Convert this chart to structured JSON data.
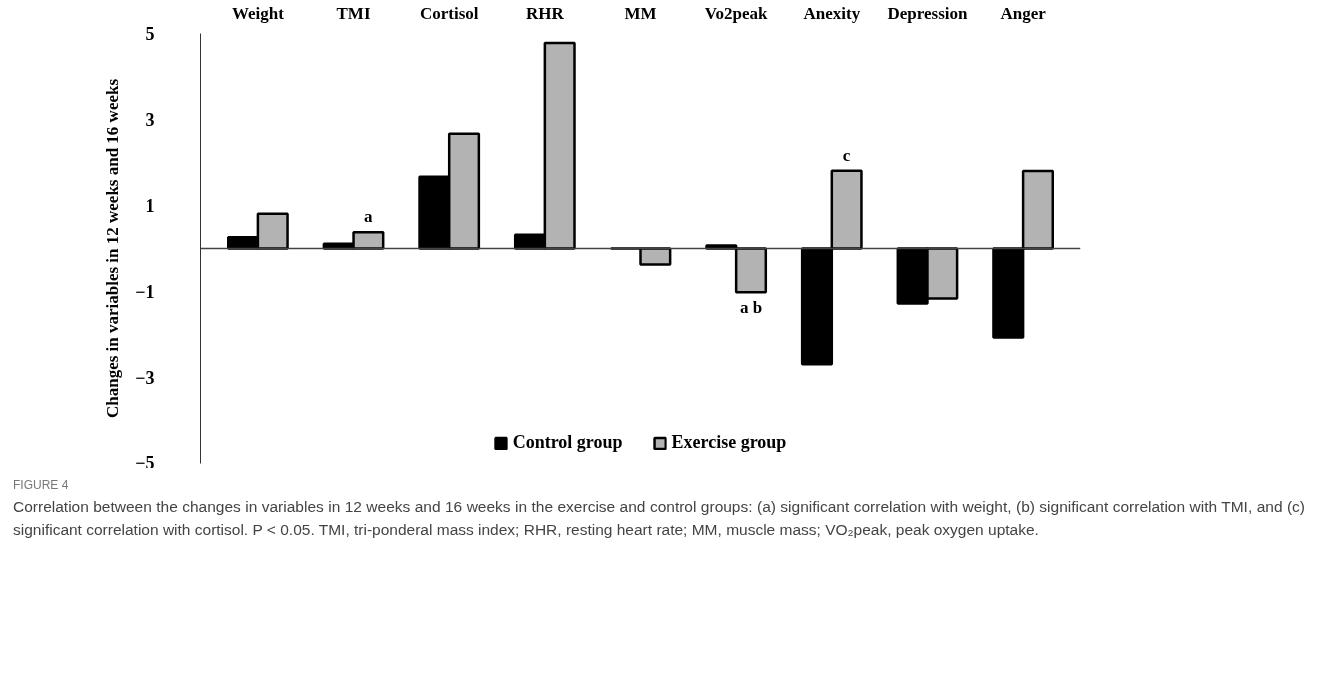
{
  "chart_data": {
    "type": "bar",
    "title": "FIGURE 4",
    "ylabel": "Changes in variables in 12 weeks and 16 weeks",
    "categories": [
      "Weight",
      "TMI",
      "Cortisol",
      "RHR",
      "MM",
      "Vo2peak",
      "Anexity",
      "Depression",
      "Anger"
    ],
    "series": [
      {
        "name": "Control group",
        "color": "#000000",
        "values": [
          0.26,
          0.11,
          1.67,
          0.32,
          0,
          0.07,
          -2.69,
          -1.28,
          -2.07
        ]
      },
      {
        "name": "Exercise group",
        "color": "#b3b3b3",
        "values": [
          0.81,
          0.38,
          2.67,
          4.78,
          -0.37,
          -1.02,
          1.81,
          -1.16,
          1.8
        ]
      }
    ],
    "ylim": [
      -5,
      5
    ],
    "yticks": [
      5,
      3,
      1,
      -1,
      -3,
      -5
    ],
    "grid": false,
    "legend": "bottom",
    "annotations": [
      {
        "text": "a",
        "x": "TMI",
        "y": 0.38
      },
      {
        "text": "a b",
        "x": "Vo2peak",
        "y": -1.02
      },
      {
        "text": "c",
        "x": "Anexity",
        "y": 1.81
      },
      "Correlation between the changes in variables in 12 weeks and 16 weeks in the exercise and control groups: (a) significant correlation with weight, (b) significant correlation with TMI, and (c) significant correlation with cortisol. P < 0.05. TMI, tri-ponderal mass index; RHR, resting heart rate; MM, muscle mass; VO₂peak, peak oxygen uptake."
    ]
  }
}
